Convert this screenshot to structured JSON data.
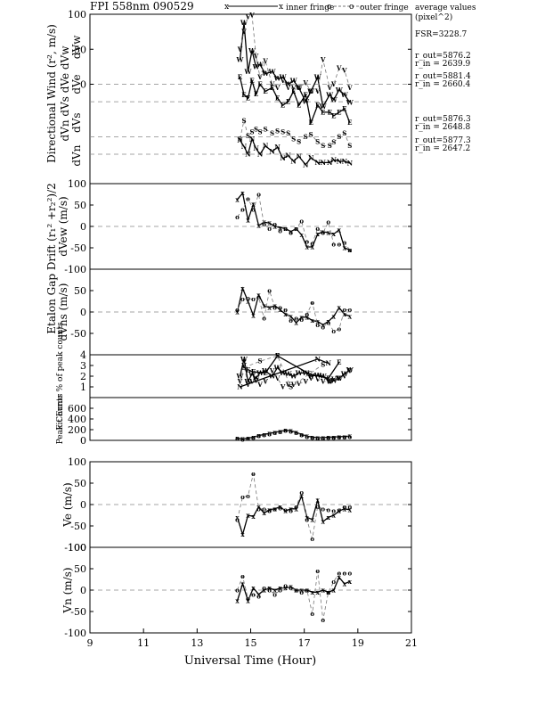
{
  "header": {
    "title": "FPI 558nm 090529",
    "legend_inner": "inner fringe",
    "legend_outer": "outer fringe",
    "legend_inner_marker": "x",
    "legend_outer_marker": "o",
    "avg_title_1": "average values",
    "avg_title_2": "(pixel^2)"
  },
  "annotations": {
    "fsr": "FSR=3228.7",
    "groups": [
      [
        "r_out=5876.2",
        "r_in = 2639.9"
      ],
      [
        "r_out=5881.4",
        "r_in = 2660.4"
      ],
      [
        "r_out=5876.3",
        "r_in = 2648.8"
      ],
      [
        "r_out=5877.3",
        "r_in = 2647.2"
      ]
    ]
  },
  "colors": {
    "ink": "#000000",
    "secondary": "#777777",
    "background": "#ffffff"
  },
  "xaxis": {
    "label": "Universal Time (Hour)",
    "ticks": [
      9,
      11,
      13,
      15,
      17,
      19,
      21
    ],
    "range": [
      9,
      21
    ]
  },
  "side_labels": {
    "top_a": "Directional Wind (r², m/s)",
    "top_b": "dVn  dVs       dVe  dVw",
    "drift": "Etalon Gap Drift (r₁² +r₂²)/2"
  },
  "chart_data": [
    {
      "id": "directional",
      "type": "line",
      "ylabels": [
        "dVw",
        "dVe",
        "dVs",
        "dVn"
      ],
      "yticks": [
        100,
        50,
        0
      ],
      "ylim": [
        -142,
        100
      ],
      "hlines": [
        0,
        -25,
        -75,
        -100
      ],
      "series": [
        {
          "marker": "W",
          "style": "solid",
          "x": [
            14.6,
            14.75,
            14.9,
            15.05,
            15.2,
            15.35,
            15.55,
            15.8,
            16.0,
            16.2,
            16.4,
            16.6,
            16.8,
            17.05,
            17.25,
            17.5,
            17.7,
            17.95,
            18.1,
            18.3,
            18.5,
            18.7
          ],
          "y": [
            35,
            88,
            18,
            48,
            25,
            28,
            15,
            18,
            8,
            10,
            0,
            5,
            -5,
            -25,
            -10,
            10,
            -32,
            -15,
            -22,
            -8,
            -15,
            -26
          ]
        },
        {
          "marker": "V",
          "style": "dashed",
          "x": [
            14.6,
            14.75,
            14.9,
            15.05,
            15.2,
            15.35,
            15.55,
            15.8,
            16.0,
            16.2,
            16.4,
            16.6,
            16.8,
            17.05,
            17.25,
            17.5,
            17.7,
            17.95,
            18.1,
            18.3,
            18.5,
            18.7
          ],
          "y": [
            50,
            75,
            96,
            99,
            40,
            10,
            33,
            0,
            -5,
            5,
            -5,
            -5,
            -5,
            2,
            -10,
            -10,
            35,
            -5,
            0,
            23,
            20,
            -5
          ]
        },
        {
          "marker": "E",
          "style": "solid",
          "x": [
            14.6,
            14.75,
            14.9,
            15.05,
            15.2,
            15.35,
            15.55,
            15.8,
            16.0,
            16.2,
            16.4,
            16.6,
            16.8,
            17.05,
            17.25,
            17.5,
            17.7,
            17.95,
            18.1,
            18.3,
            18.5,
            18.7
          ],
          "y": [
            10,
            -15,
            -20,
            5,
            -14,
            0,
            -10,
            -5,
            -20,
            -30,
            -25,
            -10,
            -30,
            -15,
            -55,
            -30,
            -40,
            -40,
            -45,
            -40,
            -35,
            -55
          ]
        },
        {
          "marker": "S",
          "style": "dashed",
          "x": [
            14.6,
            14.75,
            14.9,
            15.05,
            15.2,
            15.35,
            15.55,
            15.8,
            16.0,
            16.2,
            16.4,
            16.6,
            16.8,
            17.05,
            17.25,
            17.5,
            17.7,
            17.95,
            18.1,
            18.3,
            18.5,
            18.7
          ],
          "y": [
            -78,
            -52,
            -74,
            -68,
            -64,
            -68,
            -64,
            -70,
            -67,
            -68,
            -70,
            -78,
            -82,
            -75,
            -72,
            -82,
            -88,
            -88,
            -83,
            -75,
            -70,
            -88
          ]
        },
        {
          "marker": "N",
          "style": "solid",
          "x": [
            14.6,
            14.75,
            14.9,
            15.05,
            15.2,
            15.35,
            15.55,
            15.8,
            16.0,
            16.2,
            16.4,
            16.6,
            16.8,
            17.05,
            17.25,
            17.5,
            17.7,
            17.95,
            18.1,
            18.3,
            18.5,
            18.7
          ],
          "y": [
            -80,
            -89,
            -100,
            -78,
            -92,
            -100,
            -88,
            -96,
            -90,
            -106,
            -102,
            -110,
            -103,
            -115,
            -105,
            -112,
            -112,
            -112,
            -108,
            -110,
            -110,
            -113
          ]
        }
      ]
    },
    {
      "id": "dvew",
      "type": "line",
      "ylabel": "dVew (m/s)",
      "yticks": [
        100,
        50,
        0,
        -50,
        -100
      ],
      "ylim": [
        -100,
        100
      ],
      "hlines": [
        0
      ],
      "series": [
        {
          "name": "inner fringe",
          "marker": "x",
          "style": "solid",
          "x": [
            14.5,
            14.7,
            14.9,
            15.1,
            15.3,
            15.5,
            15.7,
            15.9,
            16.1,
            16.3,
            16.5,
            16.7,
            16.9,
            17.1,
            17.3,
            17.5,
            17.7,
            17.9,
            18.1,
            18.3,
            18.5,
            18.7
          ],
          "y": [
            63,
            78,
            15,
            52,
            2,
            10,
            8,
            0,
            -3,
            -5,
            -12,
            -5,
            -20,
            -48,
            -48,
            -18,
            -12,
            -15,
            -18,
            -8,
            -50,
            -55
          ]
        },
        {
          "name": "outer fringe",
          "marker": "o",
          "style": "dashed",
          "x": [
            14.5,
            14.7,
            14.9,
            15.1,
            15.3,
            15.5,
            15.7,
            15.9,
            16.1,
            16.3,
            16.5,
            16.7,
            16.9,
            17.1,
            17.3,
            17.5,
            17.7,
            17.9,
            18.1,
            18.3,
            18.5,
            18.7
          ],
          "y": [
            22,
            40,
            65,
            40,
            75,
            5,
            -5,
            5,
            -10,
            -5,
            -15,
            -5,
            12,
            -35,
            -40,
            -5,
            -15,
            10,
            -42,
            -42,
            -38,
            -55
          ]
        }
      ]
    },
    {
      "id": "dvns",
      "type": "line",
      "ylabel": "dVns (m/s)",
      "yticks": [
        50,
        0,
        -50
      ],
      "ylim": [
        -100,
        100
      ],
      "hlines": [
        0
      ],
      "series": [
        {
          "name": "inner fringe",
          "marker": "x",
          "style": "solid",
          "x": [
            14.5,
            14.7,
            14.9,
            15.1,
            15.3,
            15.5,
            15.7,
            15.9,
            16.1,
            16.3,
            16.5,
            16.7,
            16.9,
            17.1,
            17.3,
            17.5,
            17.7,
            17.9,
            18.1,
            18.3,
            18.5,
            18.7
          ],
          "y": [
            0,
            55,
            25,
            -8,
            40,
            15,
            10,
            15,
            5,
            -5,
            -10,
            -25,
            -12,
            -12,
            -20,
            -22,
            -30,
            -22,
            -10,
            10,
            -5,
            -10
          ]
        },
        {
          "name": "outer fringe",
          "marker": "o",
          "style": "dashed",
          "x": [
            14.5,
            14.7,
            14.9,
            15.1,
            15.3,
            15.5,
            15.7,
            15.9,
            16.1,
            16.3,
            16.5,
            16.7,
            16.9,
            17.1,
            17.3,
            17.5,
            17.7,
            17.9,
            18.1,
            18.3,
            18.5,
            18.7
          ],
          "y": [
            5,
            30,
            32,
            30,
            35,
            -15,
            50,
            10,
            10,
            5,
            -20,
            -15,
            -18,
            -5,
            22,
            -30,
            -35,
            -25,
            -45,
            -40,
            5,
            5
          ]
        }
      ]
    },
    {
      "id": "fit_error",
      "type": "line",
      "ylabel": "Fit Error % of peak counts",
      "yticks": [
        4,
        3,
        2,
        1
      ],
      "ylim": [
        0,
        4
      ],
      "hlines": [],
      "series": [
        {
          "marker": "W",
          "style": "solid",
          "x": [
            14.6,
            14.75,
            14.9,
            15.05,
            15.2,
            15.35,
            15.55,
            15.8,
            16.0,
            16.2,
            16.4,
            16.6,
            16.8,
            17.05,
            17.25,
            17.5,
            17.7,
            17.95,
            18.1,
            18.3,
            18.5,
            18.7
          ],
          "y": [
            2.0,
            3.6,
            1.5,
            2.2,
            1.8,
            2.3,
            2.5,
            2.0,
            2.8,
            2.3,
            2.2,
            2.0,
            2.3,
            2.3,
            2.0,
            2.1,
            2.0,
            1.5,
            1.6,
            1.8,
            2.2,
            2.6
          ]
        },
        {
          "marker": "V",
          "style": "dashed",
          "x": [
            14.6,
            14.75,
            14.9,
            15.05,
            15.2,
            15.35,
            15.55,
            15.8,
            16.0,
            16.2,
            16.4,
            16.6,
            16.8,
            17.05,
            17.25,
            17.5,
            17.7,
            17.95,
            18.1,
            18.3,
            18.5,
            18.7
          ],
          "y": [
            1.5,
            3.0,
            1.2,
            1.5,
            1.6,
            1.2,
            1.5,
            2.5,
            1.8,
            1.0,
            1.2,
            1.2,
            1.3,
            1.5,
            1.8,
            1.7,
            1.5,
            1.5,
            1.7,
            1.8,
            2.0,
            2.5
          ]
        },
        {
          "marker": "E",
          "style": "solid",
          "x": [
            14.9,
            15.1,
            15.55,
            16.0,
            17.2,
            17.9,
            18.3
          ],
          "y": [
            2.6,
            2.4,
            2.3,
            3.9,
            2.2,
            1.8,
            3.3
          ]
        },
        {
          "marker": "S",
          "style": "dashed",
          "x": [
            14.75,
            15.35,
            16.0,
            16.5,
            17.7
          ],
          "y": [
            2.8,
            3.4,
            3.9,
            1.0,
            3.1
          ]
        },
        {
          "marker": "N",
          "style": "solid",
          "x": [
            14.6,
            17.5,
            17.9
          ],
          "y": [
            1.0,
            3.6,
            3.2
          ]
        }
      ]
    },
    {
      "id": "peak_counts",
      "type": "line",
      "ylabel": "Peak Counts",
      "yticks": [
        600,
        400,
        200,
        0
      ],
      "ylim": [
        0,
        800
      ],
      "hlines": [],
      "series": [
        {
          "marker": "x",
          "style": "solid",
          "x": [
            14.5,
            14.7,
            14.9,
            15.1,
            15.3,
            15.5,
            15.7,
            15.9,
            16.1,
            16.3,
            16.5,
            16.7,
            16.9,
            17.1,
            17.3,
            17.5,
            17.7,
            17.9,
            18.1,
            18.3,
            18.5,
            18.7
          ],
          "y": [
            40,
            30,
            40,
            60,
            90,
            110,
            130,
            150,
            170,
            190,
            180,
            150,
            110,
            80,
            60,
            50,
            50,
            60,
            60,
            70,
            70,
            80
          ]
        },
        {
          "marker": "o",
          "style": "dashed",
          "x": [
            14.5,
            14.7,
            14.9,
            15.1,
            15.3,
            15.5,
            15.7,
            15.9,
            16.1,
            16.3,
            16.5,
            16.7,
            16.9,
            17.1,
            17.3,
            17.5,
            17.7,
            17.9,
            18.1,
            18.3,
            18.5,
            18.7
          ],
          "y": [
            30,
            20,
            30,
            50,
            80,
            100,
            120,
            140,
            160,
            180,
            170,
            140,
            100,
            70,
            50,
            40,
            40,
            50,
            50,
            60,
            60,
            70
          ]
        }
      ]
    },
    {
      "id": "ve",
      "type": "line",
      "ylabel": "Ve (m/s)",
      "yticks": [
        100,
        50,
        0,
        -50,
        -100
      ],
      "ylim": [
        -100,
        100
      ],
      "hlines": [
        0
      ],
      "series": [
        {
          "name": "inner fringe",
          "marker": "x",
          "style": "solid",
          "x": [
            14.5,
            14.7,
            14.9,
            15.1,
            15.3,
            15.5,
            15.7,
            15.9,
            16.1,
            16.3,
            16.5,
            16.7,
            16.9,
            17.1,
            17.3,
            17.5,
            17.7,
            17.9,
            18.1,
            18.3,
            18.5,
            18.7
          ],
          "y": [
            -30,
            -70,
            -25,
            -28,
            -5,
            -20,
            -12,
            -10,
            -5,
            -15,
            -10,
            -10,
            20,
            -30,
            -35,
            10,
            -40,
            -30,
            -25,
            -15,
            -10,
            -12
          ]
        },
        {
          "name": "outer fringe",
          "marker": "o",
          "style": "dashed",
          "x": [
            14.5,
            14.7,
            14.9,
            15.1,
            15.3,
            15.5,
            15.7,
            15.9,
            16.1,
            16.3,
            16.5,
            16.7,
            16.9,
            17.1,
            17.3,
            17.5,
            17.7,
            17.9,
            18.1,
            18.3,
            18.5,
            18.7
          ],
          "y": [
            -35,
            18,
            20,
            72,
            -10,
            -10,
            -15,
            -10,
            -8,
            -12,
            -15,
            -5,
            28,
            -35,
            -80,
            -5,
            -10,
            -12,
            -15,
            -12,
            -5,
            -5
          ]
        }
      ]
    },
    {
      "id": "vn",
      "type": "line",
      "ylabel": "Vn (m/s)",
      "yticks": [
        100,
        50,
        0,
        -50,
        -100
      ],
      "ylim": [
        -100,
        100
      ],
      "hlines": [
        0
      ],
      "series": [
        {
          "name": "inner fringe",
          "marker": "x",
          "style": "solid",
          "x": [
            14.5,
            14.7,
            14.9,
            15.1,
            15.3,
            15.5,
            15.7,
            15.9,
            16.1,
            16.3,
            16.5,
            16.7,
            16.9,
            17.1,
            17.3,
            17.5,
            17.7,
            17.9,
            18.1,
            18.3,
            18.5,
            18.7
          ],
          "y": [
            -25,
            15,
            -25,
            5,
            -10,
            0,
            5,
            0,
            5,
            5,
            8,
            0,
            0,
            0,
            -5,
            -5,
            0,
            -5,
            0,
            30,
            15,
            20
          ]
        },
        {
          "name": "outer fringe",
          "marker": "o",
          "style": "dashed",
          "x": [
            14.5,
            14.7,
            14.9,
            15.1,
            15.3,
            15.5,
            15.7,
            15.9,
            16.1,
            16.3,
            16.5,
            16.7,
            16.9,
            17.1,
            17.3,
            17.5,
            17.7,
            17.9,
            18.1,
            18.3,
            18.5,
            18.7
          ],
          "y": [
            0,
            32,
            -20,
            -10,
            -15,
            5,
            0,
            -10,
            0,
            10,
            5,
            0,
            -5,
            0,
            -55,
            45,
            -70,
            -5,
            20,
            40,
            40,
            40
          ]
        }
      ]
    }
  ]
}
